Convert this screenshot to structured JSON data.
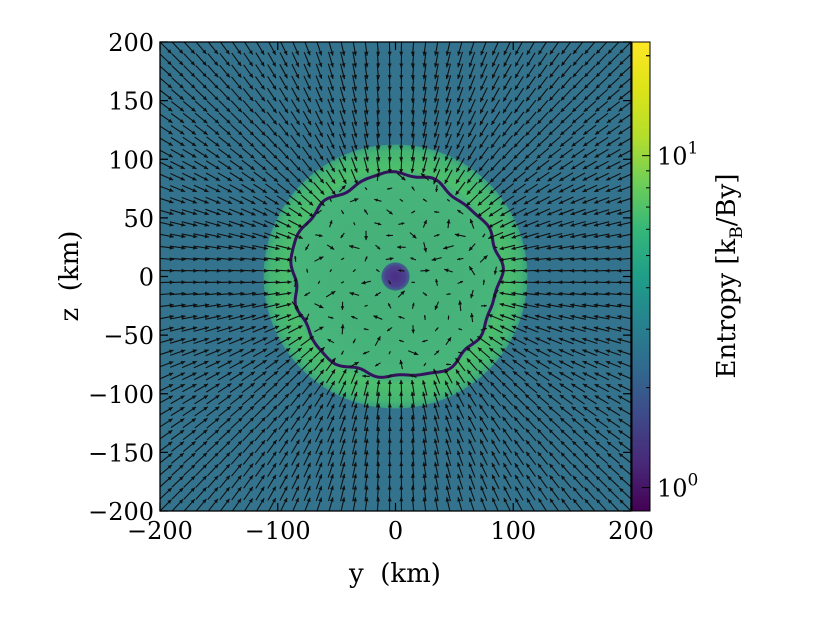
{
  "chart_data": {
    "type": "heatmap",
    "title": "",
    "xlabel": "y  (km)",
    "ylabel": "z  (km)",
    "xlim": [
      -200,
      200
    ],
    "ylim": [
      -200,
      200
    ],
    "x_ticks": [
      {
        "value": -200,
        "label": "−200"
      },
      {
        "value": -100,
        "label": "−100"
      },
      {
        "value": 0,
        "label": "0"
      },
      {
        "value": 100,
        "label": "100"
      },
      {
        "value": 200,
        "label": "200"
      }
    ],
    "y_ticks": [
      {
        "value": 200,
        "label": "200"
      },
      {
        "value": 150,
        "label": "150"
      },
      {
        "value": 100,
        "label": "100"
      },
      {
        "value": 50,
        "label": "50"
      },
      {
        "value": 0,
        "label": "0"
      },
      {
        "value": -50,
        "label": "−50"
      },
      {
        "value": -100,
        "label": "−100"
      },
      {
        "value": -150,
        "label": "−150"
      },
      {
        "value": -200,
        "label": "−200"
      }
    ],
    "colorbar": {
      "label_main": "Entropy [k",
      "label_sub": "B",
      "label_end": "/By]",
      "scale": "log",
      "range": [
        0.85,
        22
      ],
      "colormap": "viridis",
      "ticks": [
        {
          "value": 1,
          "base": "10",
          "exp": "0"
        },
        {
          "value": 10,
          "base": "10",
          "exp": "1"
        }
      ]
    },
    "regions": [
      {
        "name": "outer",
        "entropy": 3.7,
        "color": "#33738d"
      },
      {
        "name": "shocked-shell",
        "entropy": 8.5,
        "outer_radius_km": 112,
        "color": "#4cbf6c"
      },
      {
        "name": "inner-region",
        "entropy": 7.2,
        "color": "#45b07a"
      },
      {
        "name": "proto-neutron-star",
        "entropy": 1.7,
        "radius_km": 12,
        "color": "#4c3f8e"
      }
    ],
    "shock_contour_radius_km": 88,
    "shock_contour_color": "#33145c",
    "velocity_field": "arrows pointing radially inward outside shock; small random arrows inside"
  }
}
